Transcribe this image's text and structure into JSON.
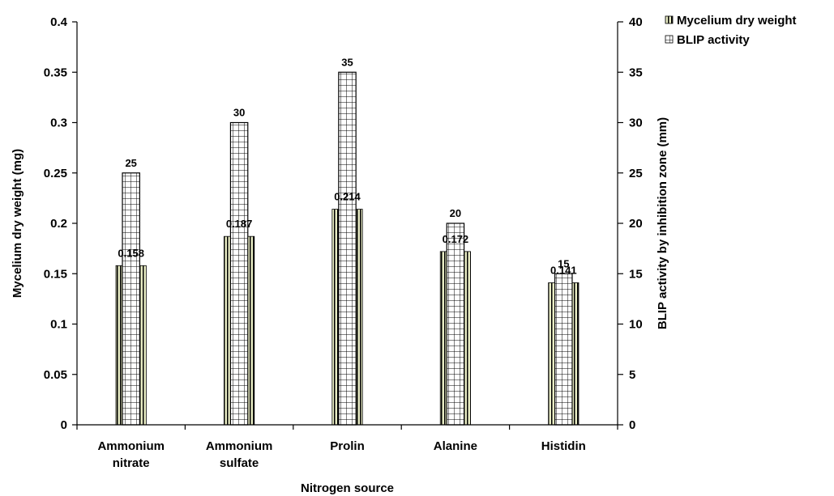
{
  "chart_data": {
    "type": "bar",
    "categories": [
      [
        "Ammonium",
        "nitrate"
      ],
      [
        "Ammonium",
        "sulfate"
      ],
      [
        "Prolin"
      ],
      [
        "Alanine"
      ],
      [
        "Histidin"
      ]
    ],
    "series": [
      {
        "name": "Mycelium dry weight",
        "axis": "left",
        "values": [
          0.158,
          0.187,
          0.214,
          0.172,
          0.141
        ],
        "labels": [
          "0.158",
          "0.187",
          "0.214",
          "0.172",
          "0.141"
        ],
        "pattern": "vertical-stripes"
      },
      {
        "name": "BLIP activity",
        "axis": "right",
        "values": [
          25,
          30,
          35,
          20,
          15
        ],
        "labels": [
          "25",
          "30",
          "35",
          "20",
          "15"
        ],
        "pattern": "grid"
      }
    ],
    "xlabel": "Nitrogen source",
    "ylabel": "Mycelium dry weight (mg)",
    "y2label": "BLIP activity by inhibition zone (mm)",
    "ylim": [
      0,
      0.4
    ],
    "y2lim": [
      0,
      40
    ],
    "yticks": [
      "0",
      "0.05",
      "0.1",
      "0.15",
      "0.2",
      "0.25",
      "0.3",
      "0.35",
      "0.4"
    ],
    "y2ticks": [
      "0",
      "5",
      "10",
      "15",
      "20",
      "25",
      "30",
      "35",
      "40"
    ],
    "legend_position": "top-right",
    "grid": false
  },
  "colors": {
    "stripe_fill": "#e8ecc4",
    "stripe_line": "#000000",
    "grid_fill": "#ffffff",
    "grid_line": "#000000"
  }
}
